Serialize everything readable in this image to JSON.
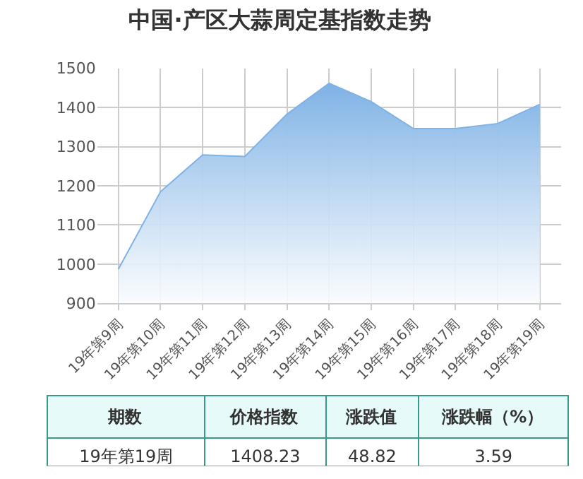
{
  "chart_data": [
    {
      "type": "area",
      "title": "中国·产区大蒜周定基指数走势",
      "categories": [
        "19年第9周",
        "19年第10周",
        "19年第11周",
        "19年第12周",
        "19年第13周",
        "19年第14周",
        "19年第15周",
        "19年第16周",
        "19年第17周",
        "19年第18周",
        "19年第19周"
      ],
      "series": [
        {
          "color": "#7fb2e5",
          "values": [
            987,
            1185,
            1279,
            1275,
            1383,
            1462,
            1415,
            1346,
            1346,
            1359,
            1408
          ]
        }
      ],
      "ylim": [
        900,
        1500
      ],
      "yticks": [
        900,
        1000,
        1100,
        1200,
        1300,
        1400,
        1500
      ],
      "grid": true
    },
    {
      "type": "other",
      "annotations": [
        "期数",
        "价格指数",
        "涨跌值",
        "涨跌幅（%）",
        "19年第19周",
        "1408.23",
        "48.82",
        "3.59"
      ]
    }
  ]
}
